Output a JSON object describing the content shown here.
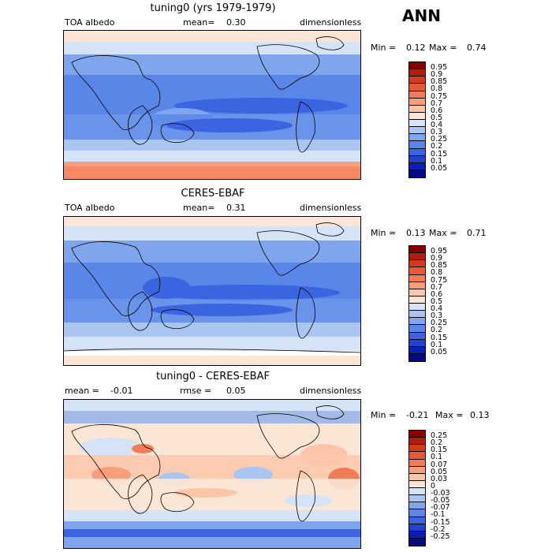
{
  "season": "ANN",
  "panels": [
    {
      "title": "tuning0 (yrs 1979-1979)",
      "left_label": "TOA albedo",
      "mean_label": "mean=",
      "mean_value": "0.30",
      "units": "dimensionless",
      "min_label": "Min =",
      "min_value": "0.12",
      "max_label": "Max =",
      "max_value": "0.74",
      "colorbar": [
        "0.95",
        "0.9",
        "0.85",
        "0.8",
        "0.75",
        "0.7",
        "0.6",
        "0.5",
        "0.4",
        "0.3",
        "0.25",
        "0.2",
        "0.15",
        "0.1",
        "0.05"
      ]
    },
    {
      "title": "CERES-EBAF",
      "left_label": "TOA albedo",
      "mean_label": "mean=",
      "mean_value": "0.31",
      "units": "dimensionless",
      "min_label": "Min =",
      "min_value": "0.13",
      "max_label": "Max =",
      "max_value": "0.71",
      "colorbar": [
        "0.95",
        "0.9",
        "0.85",
        "0.8",
        "0.75",
        "0.7",
        "0.6",
        "0.5",
        "0.4",
        "0.3",
        "0.25",
        "0.2",
        "0.15",
        "0.1",
        "0.05"
      ]
    },
    {
      "title": "tuning0 - CERES-EBAF",
      "left_label": "mean =",
      "left_value": "-0.01",
      "mean_label": "rmse =",
      "mean_value": "0.05",
      "units": "dimensionless",
      "min_label": "Min =",
      "min_value": "-0.21",
      "max_label": "Max =",
      "max_value": "0.13",
      "colorbar": [
        "0.25",
        "0.2",
        "0.15",
        "0.1",
        "0.07",
        "0.05",
        "0.03",
        "0",
        "-0.03",
        "-0.05",
        "-0.07",
        "-0.1",
        "-0.15",
        "-0.2",
        "-0.25"
      ]
    }
  ],
  "colors": {
    "albedo_scale": [
      "#8b0000",
      "#b01e0e",
      "#d33a1e",
      "#e85a37",
      "#f27c55",
      "#f79e7a",
      "#fbc5a9",
      "#fbe6d6",
      "#d5e3f7",
      "#a9c5f0",
      "#7fa6ec",
      "#5a86e8",
      "#3a64e0",
      "#1f44d2",
      "#0a1fb5",
      "#050a80"
    ],
    "diff_scale": [
      "#8b0000",
      "#b01e0e",
      "#d33a1e",
      "#e85a37",
      "#f27c55",
      "#f79e7a",
      "#fbc5a9",
      "#fbe6d6",
      "#d5e3f7",
      "#a9c5f0",
      "#7fa6ec",
      "#5a86e8",
      "#3a64e0",
      "#1f44d2",
      "#0a1fb5",
      "#050a80"
    ]
  },
  "chart_data": [
    {
      "type": "heatmap",
      "title": "tuning0 (yrs 1979-1979)",
      "variable": "TOA albedo",
      "units": "dimensionless",
      "mean": 0.3,
      "min": 0.12,
      "max": 0.74,
      "levels": [
        0.05,
        0.1,
        0.15,
        0.2,
        0.25,
        0.3,
        0.4,
        0.5,
        0.6,
        0.7,
        0.75,
        0.8,
        0.85,
        0.9,
        0.95
      ]
    },
    {
      "type": "heatmap",
      "title": "CERES-EBAF",
      "variable": "TOA albedo",
      "units": "dimensionless",
      "mean": 0.31,
      "min": 0.13,
      "max": 0.71,
      "levels": [
        0.05,
        0.1,
        0.15,
        0.2,
        0.25,
        0.3,
        0.4,
        0.5,
        0.6,
        0.7,
        0.75,
        0.8,
        0.85,
        0.9,
        0.95
      ]
    },
    {
      "type": "heatmap",
      "title": "tuning0 - CERES-EBAF",
      "units": "dimensionless",
      "mean": -0.01,
      "rmse": 0.05,
      "min": -0.21,
      "max": 0.13,
      "levels": [
        -0.25,
        -0.2,
        -0.15,
        -0.1,
        -0.07,
        -0.05,
        -0.03,
        0,
        0.03,
        0.05,
        0.07,
        0.1,
        0.15,
        0.2,
        0.25
      ]
    }
  ]
}
